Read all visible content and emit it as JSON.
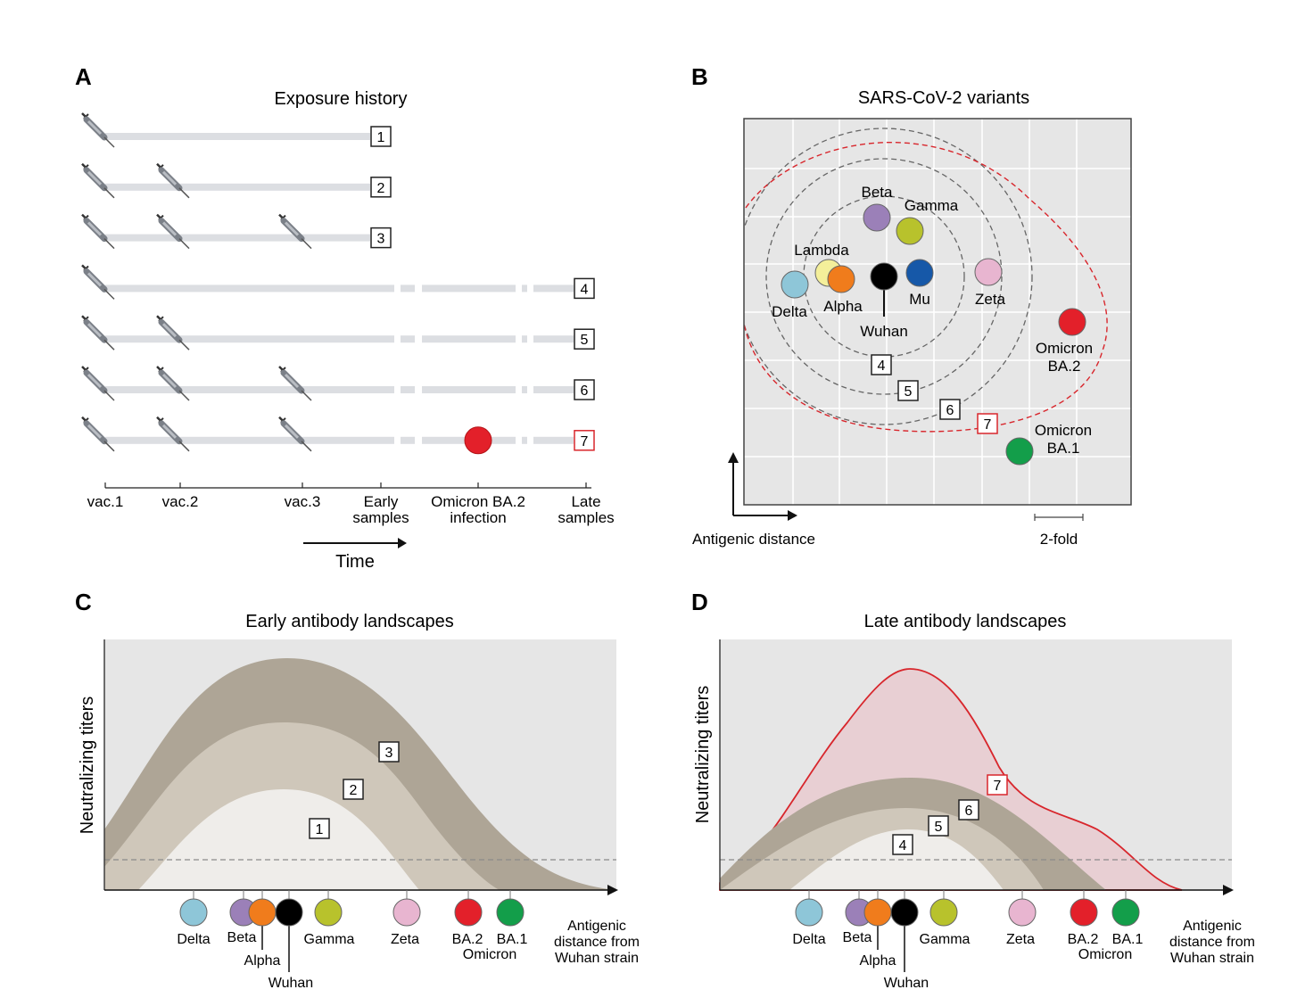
{
  "panels": {
    "a": {
      "letter": "A",
      "title": "Exposure history",
      "rows": [
        {
          "num": "1",
          "vaccines": 1,
          "late": false,
          "infection": false
        },
        {
          "num": "2",
          "vaccines": 2,
          "late": false,
          "infection": false
        },
        {
          "num": "3",
          "vaccines": 3,
          "late": false,
          "infection": false
        },
        {
          "num": "4",
          "vaccines": 1,
          "late": true,
          "infection": false
        },
        {
          "num": "5",
          "vaccines": 2,
          "late": true,
          "infection": false
        },
        {
          "num": "6",
          "vaccines": 3,
          "late": true,
          "infection": false
        },
        {
          "num": "7",
          "vaccines": 3,
          "late": true,
          "infection": true
        }
      ],
      "timeline_labels": [
        {
          "line1": "vac.1",
          "line2": ""
        },
        {
          "line1": "vac.2",
          "line2": ""
        },
        {
          "line1": "vac.3",
          "line2": ""
        },
        {
          "line1": "Early",
          "line2": "samples"
        },
        {
          "line1": "Omicron BA.2",
          "line2": "infection"
        },
        {
          "line1": "Late",
          "line2": "samples"
        }
      ],
      "time_label": "Time"
    },
    "b": {
      "letter": "B",
      "title": "SARS-CoV-2 variants",
      "variants": [
        {
          "name": "Beta",
          "color": "#9b80b8"
        },
        {
          "name": "Gamma",
          "color": "#b8c22c"
        },
        {
          "name": "Lambda",
          "color": "#f4ef9a"
        },
        {
          "name": "Delta",
          "color": "#8ec6d8"
        },
        {
          "name": "Alpha",
          "color": "#f07c1c"
        },
        {
          "name": "Wuhan",
          "color": "#000000"
        },
        {
          "name": "Mu",
          "color": "#1658a8"
        },
        {
          "name": "Zeta",
          "color": "#e8b5d0"
        },
        {
          "name": "Omicron",
          "name2": "BA.2",
          "color": "#e3202a"
        },
        {
          "name": "Omicron",
          "name2": "BA.1",
          "color": "#139e4a"
        }
      ],
      "contour_labels": [
        "4",
        "5",
        "6",
        "7"
      ],
      "axis_label": "Antigenic distance",
      "scale_label": "2-fold"
    },
    "c": {
      "letter": "C",
      "title": "Early antibody landscapes",
      "ylabel": "Neutralizing titers",
      "curve_labels": [
        "1",
        "2",
        "3"
      ],
      "xaxis_label": [
        "Antigenic",
        "distance from",
        "Wuhan strain"
      ]
    },
    "d": {
      "letter": "D",
      "title": "Late antibody landscapes",
      "ylabel": "Neutralizing titers",
      "curve_labels": [
        "4",
        "5",
        "6",
        "7"
      ],
      "xaxis_label": [
        "Antigenic",
        "distance from",
        "Wuhan strain"
      ]
    }
  },
  "strip": {
    "variants": [
      {
        "name": "Delta",
        "color": "#8ec6d8"
      },
      {
        "name": "Beta",
        "color": "#9b80b8"
      },
      {
        "name": "Alpha",
        "color": "#f07c1c"
      },
      {
        "name": "Wuhan",
        "color": "#000000"
      },
      {
        "name": "Gamma",
        "color": "#b8c22c"
      },
      {
        "name": "Zeta",
        "color": "#e8b5d0"
      },
      {
        "name": "BA.2",
        "color": "#e3202a"
      },
      {
        "name": "BA.1",
        "color": "#139e4a"
      }
    ],
    "group_label": "Omicron"
  },
  "colors": {
    "panel_bg": "#e6e6e6",
    "bar": "#dcdee2",
    "dark_band": "#aea596",
    "mid_band": "#cfc7ba",
    "light_band": "#efedea",
    "late_fill": "#e8cfd3",
    "late_line": "#d8262c",
    "highlight_box": "#d8262c"
  }
}
